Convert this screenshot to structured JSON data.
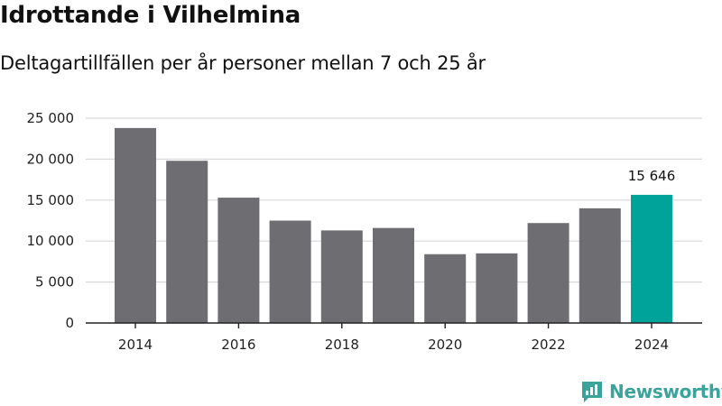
{
  "header": {
    "title": "Idrottande i Vilhelmina",
    "subtitle": "Deltagartillfällen per år personer mellan 7 och 25 år"
  },
  "brand": {
    "name": "Newsworthy",
    "color": "#3aa39a"
  },
  "colors": {
    "bar": "#6d6d72",
    "highlight": "#00a39a",
    "grid": "#d9d9d9",
    "axis": "#222222"
  },
  "chart_data": {
    "type": "bar",
    "title": "Idrottande i Vilhelmina",
    "subtitle": "Deltagartillfällen per år personer mellan 7 och 25 år",
    "xlabel": "",
    "ylabel": "",
    "categories": [
      "2014",
      "2015",
      "2016",
      "2017",
      "2018",
      "2019",
      "2020",
      "2021",
      "2022",
      "2023",
      "2024"
    ],
    "values": [
      23800,
      19800,
      15300,
      12500,
      11300,
      11600,
      8400,
      8500,
      12200,
      14000,
      15646
    ],
    "highlight_index": 10,
    "highlight_label": "15 646",
    "ylim": [
      0,
      25000
    ],
    "yticks": [
      0,
      5000,
      10000,
      15000,
      20000,
      25000
    ],
    "ytick_labels": [
      "0",
      "5 000",
      "10 000",
      "15 000",
      "20 000",
      "25 000"
    ],
    "xtick_labels": [
      "2014",
      "2016",
      "2018",
      "2020",
      "2022",
      "2024"
    ],
    "grid": true,
    "legend": "none"
  }
}
